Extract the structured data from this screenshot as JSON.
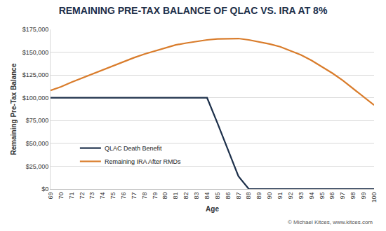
{
  "chart_data": {
    "type": "line",
    "title": "REMAINING PRE-TAX BALANCE OF QLAC VS. IRA AT 8%",
    "x_label": "Age",
    "y_label": "Remaining Pre-Tax Balance",
    "annotations": [
      "© Michael Kitces, www.kitces.com"
    ],
    "x": [
      69,
      70,
      71,
      72,
      73,
      74,
      75,
      76,
      77,
      78,
      79,
      80,
      81,
      82,
      83,
      84,
      85,
      86,
      87,
      88,
      89,
      90,
      91,
      92,
      93,
      94,
      95,
      96,
      97,
      98,
      99,
      100
    ],
    "xlim": [
      69,
      100
    ],
    "xticks": [
      69,
      70,
      71,
      72,
      73,
      74,
      75,
      76,
      77,
      78,
      79,
      80,
      81,
      82,
      83,
      84,
      85,
      86,
      87,
      88,
      89,
      90,
      91,
      92,
      93,
      94,
      95,
      96,
      97,
      98,
      99,
      100
    ],
    "ylim": [
      0,
      175000
    ],
    "yticks": [
      {
        "value": 0,
        "label": "$0"
      },
      {
        "value": 25000,
        "label": "$25,000"
      },
      {
        "value": 50000,
        "label": "$50,000"
      },
      {
        "value": 75000,
        "label": "$75,000"
      },
      {
        "value": 100000,
        "label": "$100,000"
      },
      {
        "value": 125000,
        "label": "$125,000"
      },
      {
        "value": 150000,
        "label": "$150,000"
      },
      {
        "value": 175000,
        "label": "$175,000"
      }
    ],
    "grid": true,
    "legend": "lower left",
    "series": [
      {
        "name": "QLAC Death Benefit",
        "color": "#1c2f4a",
        "values": [
          100000,
          100000,
          100000,
          100000,
          100000,
          100000,
          100000,
          100000,
          100000,
          100000,
          100000,
          100000,
          100000,
          100000,
          100000,
          100000,
          72000,
          43000,
          14000,
          0,
          0,
          0,
          0,
          0,
          0,
          0,
          0,
          0,
          0,
          0,
          0,
          0
        ]
      },
      {
        "name": "Remaining IRA After RMDs",
        "color": "#d97c2b",
        "values": [
          108000,
          112000,
          117000,
          121500,
          126500,
          131000,
          135500,
          140000,
          144000,
          148000,
          151500,
          155000,
          158000,
          160000,
          162000,
          163500,
          164500,
          165000,
          165000,
          163500,
          161500,
          159000,
          156000,
          151500,
          147000,
          141000,
          134000,
          127000,
          119000,
          110000,
          101000,
          92000
        ]
      }
    ]
  }
}
